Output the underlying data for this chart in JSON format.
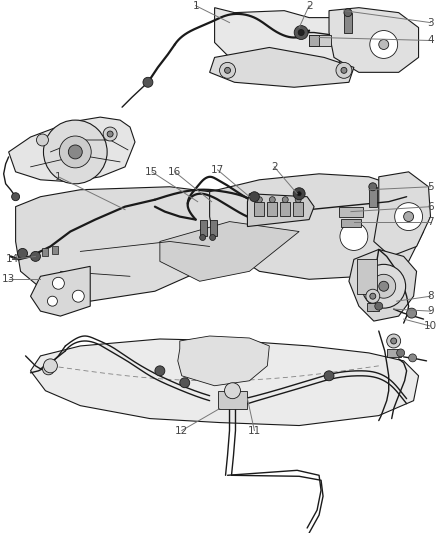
{
  "bg_color": "#ffffff",
  "line_color": "#1a1a1a",
  "label_color": "#555555",
  "fig_width": 4.38,
  "fig_height": 5.33,
  "dpi": 100,
  "lw_main": 1.0,
  "lw_thick": 1.6,
  "lw_thin": 0.6,
  "lw_part": 0.8,
  "label_fontsize": 7.5
}
